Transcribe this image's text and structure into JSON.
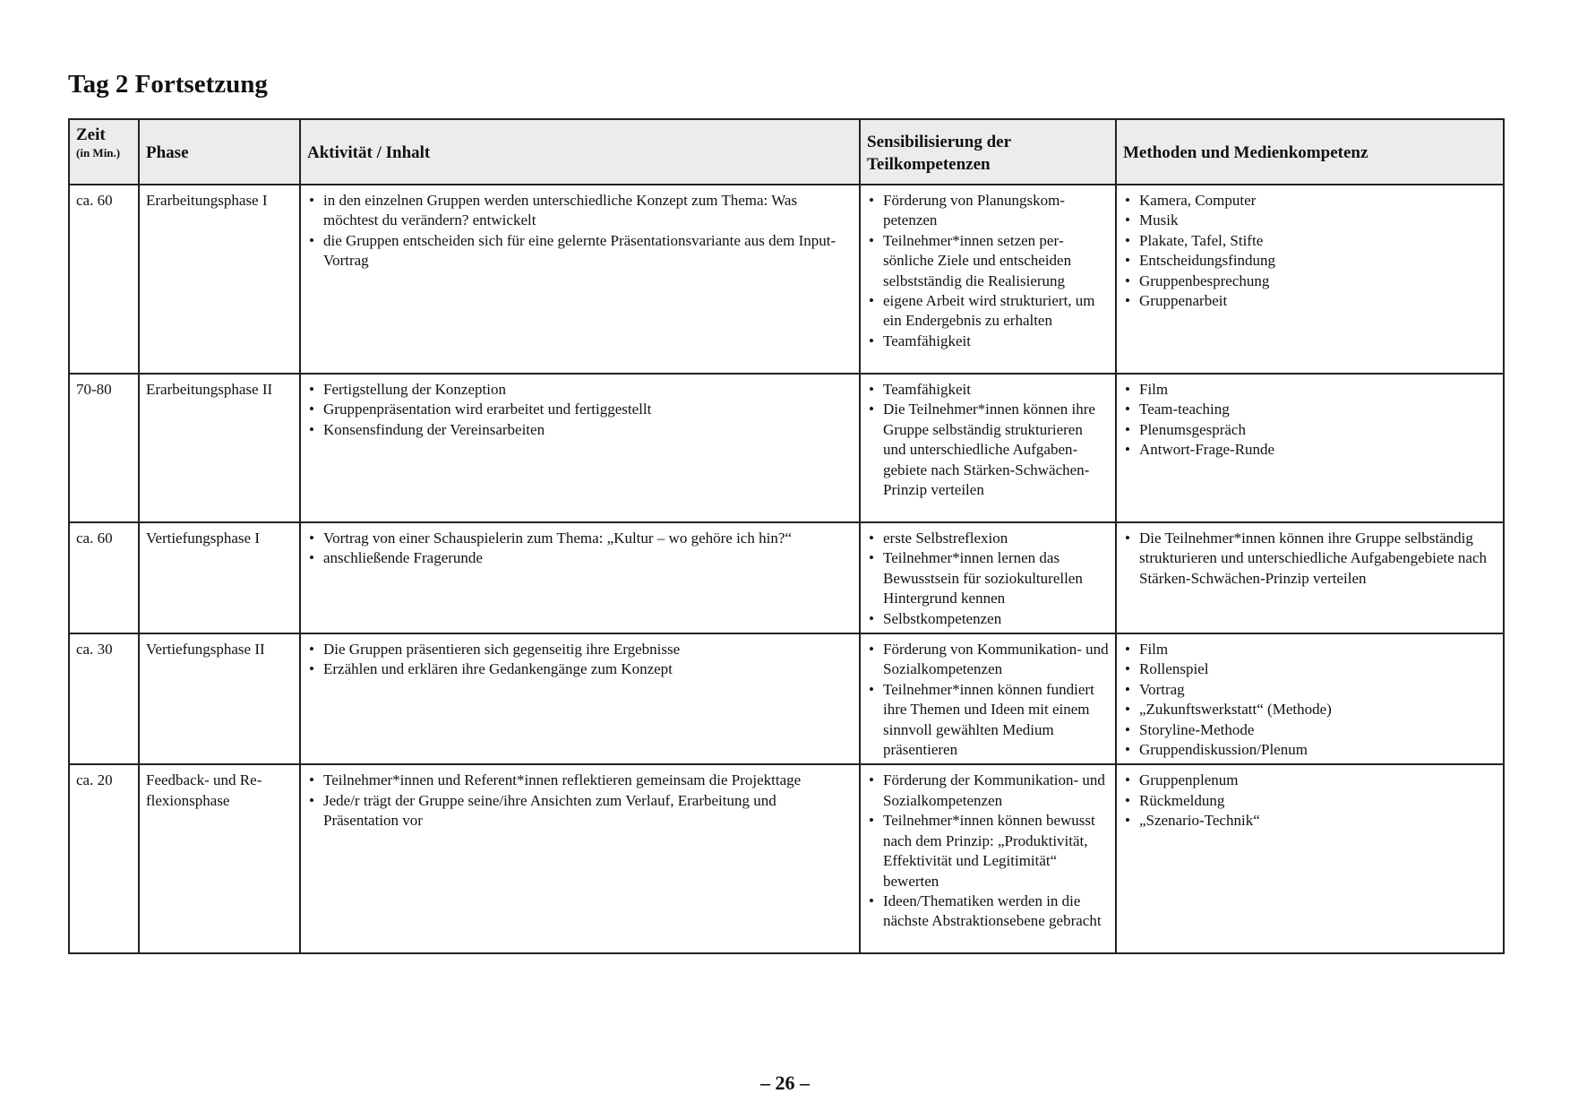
{
  "title": "Tag 2 Fortsetzung",
  "table": {
    "headers": {
      "zeit": "Zeit",
      "zeit_unit": "(in Min.)",
      "phase": "Phase",
      "aktivitaet": "Aktivität / Inhalt",
      "sensibilisierung": "Sensibilisierung der Teilkompetenzen",
      "methoden": "Methoden und Medienkompetenz"
    },
    "rows": [
      {
        "zeit": "ca. 60",
        "phase": "Erarbeitungsphase I",
        "aktivitaet": [
          "in den einzelnen Gruppen werden unterschiedliche Konzept zum Thema: Was möchtest du verändern? entwickelt",
          "die Gruppen entscheiden sich für eine gelernte Präsentationsvariante aus dem Input-Vortrag"
        ],
        "sensibilisierung": [
          "Förderung von Planungskom­petenzen",
          "Teilnehmer*innen setzen per­sönliche Ziele und entscheiden selbstständig die Realisierung",
          "eigene Arbeit wird struktu­riert, um ein Endergebnis zu erhalten",
          "Teamfähigkeit"
        ],
        "methoden": [
          "Kamera, Computer",
          "Musik",
          "Plakate, Tafel, Stifte",
          "Entscheidungsfindung",
          "Gruppenbesprechung",
          "Gruppenarbeit"
        ]
      },
      {
        "zeit": "70-80",
        "phase": "Erarbeitungspha­se II",
        "aktivitaet": [
          "Fertigstellung der Konzeption",
          "Gruppenpräsentation wird erarbeitet und fertiggestellt",
          "Konsensfindung der Vereinsarbeiten"
        ],
        "sensibilisierung": [
          "Teamfähigkeit",
          "Die Teilnehmer*innen kön­nen ihre Gruppe selbstän­dig strukturieren und unterschiedliche Aufgaben­gebiete nach Stärken-Schwä­chen-Prinzip verteilen"
        ],
        "methoden": [
          "Film",
          "Team-teaching",
          "Plenumsgespräch",
          "Antwort-Frage-Runde"
        ]
      },
      {
        "zeit": "ca. 60",
        "phase": "Vertiefungsphase I",
        "aktivitaet": [
          "Vortrag von einer Schauspielerin zum Thema: „Kultur – wo gehöre ich hin?“",
          "anschließende Fragerunde"
        ],
        "sensibilisierung": [
          "erste Selbstreflexion",
          "Teilnehmer*innen lernen das Bewusstsein für soziokultu­rellen Hintergrund kennen",
          "Selbstkompetenzen"
        ],
        "methoden": [
          "Die Teilnehmer*innen können ihre Gruppe selbständig strukturieren und unterschiedliche Aufgabengebiete nach Stärken-Schwächen-Prin­zip verteilen"
        ]
      },
      {
        "zeit": "ca. 30",
        "phase": "Vertiefungsphase II",
        "aktivitaet": [
          "Die Gruppen präsentieren sich gegenseitig ihre Ergebnisse",
          "Erzählen und erklären ihre Gedankengänge zum Konzept"
        ],
        "sensibilisierung": [
          "Förderung von Kommunikati­on- und Sozialkompetenzen",
          "Teilnehmer*innen können fundiert ihre Themen und Ide­en mit einem sinnvoll gewähl­ten Medium präsentieren"
        ],
        "methoden": [
          "Film",
          "Rollenspiel",
          "Vortrag",
          "„Zukunftswerkstatt“ (Methode)",
          "Storyline-Methode",
          "Gruppendiskussion/Plenum"
        ]
      },
      {
        "zeit": "ca. 20",
        "phase": "Feedback- und Re­flexionsphase",
        "aktivitaet": [
          "Teilnehmer*innen und Referent*innen reflektieren gemeinsam die Projekttage",
          "Jede/r trägt der Gruppe seine/ihre Ansichten zum Verlauf, Erarbeitung und Präsentation vor"
        ],
        "sensibilisierung": [
          "Förderung der Kommunikati­on- und Sozialkompetenzen",
          "Teilnehmer*innen können be­wusst nach dem Prinzip: „Pro­duktivität, Effektivität und Legitimität“ bewerten",
          "Ideen/Thematiken werden in die nächste Abstraktionsebe­ne gebracht"
        ],
        "methoden": [
          "Gruppenplenum",
          "Rückmeldung",
          "„Szenario-Technik“"
        ]
      }
    ]
  },
  "page_number": "– 26 –"
}
